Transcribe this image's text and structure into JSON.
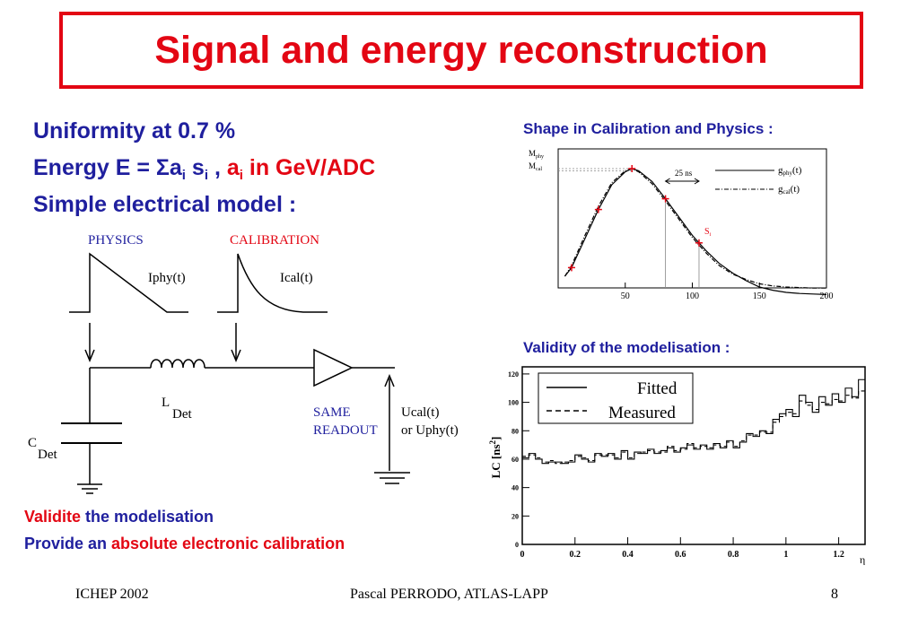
{
  "title": "Signal and energy reconstruction",
  "bullets": {
    "b1": "Uniformity at 0.7 %",
    "b2_prefix": "Energy E = ",
    "b2_sigma": "Σ",
    "b2_a": "a",
    "b2_sub_i1": "i",
    "b2_s": " s",
    "b2_sub_i2": "i",
    "b2_comma": " , ",
    "b2_a2": "a",
    "b2_sub_i3": "i",
    "b2_suffix": " in GeV/ADC",
    "b3": "Simple electrical model :"
  },
  "circuit": {
    "physics_label": "PHYSICS",
    "calibration_label": "CALIBRATION",
    "iphy": "Iphy(t)",
    "ical": "Ical(t)",
    "l_main": "L",
    "l_sub": "Det",
    "c_main": "C",
    "c_sub": "Det",
    "same": "SAME",
    "readout": "READOUT",
    "ucal": "Ucal(t)",
    "uphy": "or Uphy(t)",
    "colors": {
      "physics": "#1f1f9e",
      "calibration": "#e30613"
    }
  },
  "shape_plot": {
    "heading": "Shape in Calibration and Physics :",
    "m_phy": "M",
    "m_phy_sub": "phy",
    "m_cal": "M",
    "m_cal_sub": "cal",
    "delay_label": "25 ns",
    "legend_phy": "g",
    "legend_phy_sub": "phy",
    "legend_phy_suffix": "(t)",
    "legend_cal": "g",
    "legend_cal_sub": "cal",
    "legend_cal_suffix": "(t)",
    "si_label": "S",
    "si_sub": "i",
    "x_ticks": [
      "50",
      "100",
      "150",
      "200"
    ]
  },
  "validity": {
    "heading": "Validity of the modelisation :",
    "ylabel": "LC [ns",
    "ylabel_sup": "2",
    "ylabel_close": "]",
    "legend_fitted": "Fitted",
    "legend_measured": "Measured",
    "x_ticks": [
      "0",
      "0.2",
      "0.4",
      "0.6",
      "0.8",
      "1",
      "1.2"
    ],
    "y_ticks": [
      "0",
      "20",
      "40",
      "60",
      "80",
      "100",
      "120"
    ],
    "x_axis_suffix": "η"
  },
  "notes": {
    "n1_red": "Validite",
    "n1_rest": " the modelisation",
    "n2_prefix": "Provide an ",
    "n2_red": "absolute electronic calibration"
  },
  "footer": {
    "left": "ICHEP 2002",
    "center": "Pascal PERRODO, ATLAS-LAPP",
    "page": "8"
  },
  "chart_data": [
    {
      "type": "line",
      "title": "Shape in Calibration and Physics :",
      "xlabel": "",
      "ylabel": "",
      "xlim": [
        0,
        200
      ],
      "x_ticks": [
        50,
        100,
        150,
        200
      ],
      "series": [
        {
          "name": "gphy(t)",
          "style": "solid",
          "x": [
            5,
            10,
            20,
            30,
            40,
            50,
            55,
            60,
            70,
            80,
            90,
            100,
            110,
            120,
            130,
            140,
            150,
            160,
            170,
            180,
            190,
            200
          ],
          "y": [
            0.0,
            0.08,
            0.35,
            0.62,
            0.85,
            0.97,
            1.0,
            0.98,
            0.88,
            0.72,
            0.55,
            0.38,
            0.24,
            0.12,
            0.03,
            -0.04,
            -0.1,
            -0.13,
            -0.15,
            -0.16,
            -0.165,
            -0.17
          ]
        },
        {
          "name": "gcal(t)",
          "style": "dash-dot",
          "x": [
            5,
            10,
            20,
            30,
            40,
            50,
            55,
            60,
            70,
            80,
            90,
            100,
            110,
            120,
            130,
            140,
            150,
            160,
            170,
            180,
            190,
            200
          ],
          "y": [
            0.0,
            0.1,
            0.38,
            0.65,
            0.87,
            0.98,
            1.0,
            0.97,
            0.86,
            0.7,
            0.53,
            0.36,
            0.22,
            0.1,
            0.02,
            -0.03,
            -0.07,
            -0.09,
            -0.1,
            -0.105,
            -0.11,
            -0.11
          ]
        }
      ],
      "samples_x": [
        10,
        30,
        55,
        80,
        105
      ]
    },
    {
      "type": "line",
      "title": "Validity of the modelisation :",
      "xlabel": "η",
      "ylabel": "LC [ns²]",
      "xlim": [
        0,
        1.3
      ],
      "ylim": [
        0,
        125
      ],
      "legend": "top-left",
      "series": [
        {
          "name": "Fitted",
          "style": "solid",
          "x": [
            0.0,
            0.025,
            0.05,
            0.075,
            0.1,
            0.125,
            0.15,
            0.175,
            0.2,
            0.225,
            0.25,
            0.275,
            0.3,
            0.325,
            0.35,
            0.375,
            0.4,
            0.425,
            0.45,
            0.475,
            0.5,
            0.525,
            0.55,
            0.575,
            0.6,
            0.625,
            0.65,
            0.675,
            0.7,
            0.725,
            0.75,
            0.775,
            0.8,
            0.825,
            0.85,
            0.875,
            0.9,
            0.925,
            0.95,
            0.975,
            1.0,
            1.025,
            1.05,
            1.075,
            1.1,
            1.125,
            1.15,
            1.175,
            1.2,
            1.225,
            1.25,
            1.275
          ],
          "y": [
            61,
            64,
            60,
            57,
            58,
            58,
            57,
            58,
            63,
            60,
            58,
            64,
            62,
            64,
            60,
            66,
            60,
            65,
            64,
            67,
            64,
            66,
            68,
            65,
            68,
            70,
            67,
            70,
            67,
            71,
            68,
            73,
            68,
            72,
            78,
            76,
            80,
            78,
            88,
            92,
            95,
            90,
            105,
            100,
            93,
            104,
            98,
            106,
            100,
            110,
            104,
            116
          ]
        },
        {
          "name": "Measured",
          "style": "dashed",
          "x": [
            0.0,
            0.025,
            0.05,
            0.075,
            0.1,
            0.125,
            0.15,
            0.175,
            0.2,
            0.225,
            0.25,
            0.275,
            0.3,
            0.325,
            0.35,
            0.375,
            0.4,
            0.425,
            0.45,
            0.475,
            0.5,
            0.525,
            0.55,
            0.575,
            0.6,
            0.625,
            0.65,
            0.675,
            0.7,
            0.725,
            0.75,
            0.775,
            0.8,
            0.825,
            0.85,
            0.875,
            0.9,
            0.925,
            0.95,
            0.975,
            1.0,
            1.025,
            1.05,
            1.075,
            1.1,
            1.125,
            1.15,
            1.175,
            1.2,
            1.225,
            1.25,
            1.275
          ],
          "y": [
            62,
            63,
            61,
            58,
            59,
            57,
            58,
            59,
            62,
            61,
            59,
            63,
            63,
            63,
            61,
            65,
            61,
            64,
            65,
            66,
            65,
            65,
            69,
            66,
            67,
            71,
            68,
            69,
            68,
            70,
            69,
            72,
            69,
            73,
            77,
            77,
            79,
            79,
            86,
            90,
            93,
            92,
            101,
            98,
            95,
            100,
            99,
            102,
            101,
            105,
            103,
            108
          ]
        }
      ]
    }
  ]
}
